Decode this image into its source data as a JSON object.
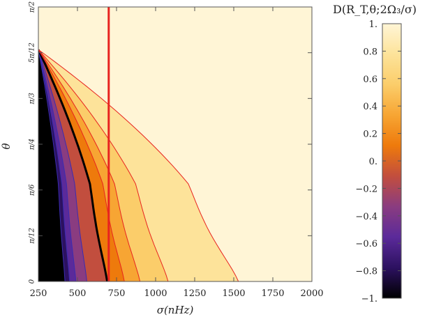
{
  "chart_data": {
    "type": "contour",
    "xlabel": "σ(nHz)",
    "ylabel": "θ",
    "xlim": [
      250,
      2000
    ],
    "ylim": [
      0,
      90
    ],
    "x_ticks": [
      250,
      500,
      750,
      1000,
      1250,
      1500,
      1750,
      2000
    ],
    "x_tick_labels": [
      "250",
      "500",
      "750",
      "1000",
      "1250",
      "1500",
      "1750",
      "2000"
    ],
    "y_ticks": [
      0,
      15,
      30,
      45,
      60,
      75,
      90
    ],
    "y_tick_labels": [
      "0",
      "π/12",
      "π/6",
      "π/4",
      "π/3",
      "5π/12",
      "π/2"
    ],
    "colorbar": {
      "title": "D(R_T,θ;2Ω₃/σ)",
      "range": [
        -1,
        1
      ],
      "ticks": [
        -1,
        -0.8,
        -0.6,
        -0.4,
        -0.2,
        0,
        0.2,
        0.4,
        0.6,
        0.8,
        1
      ],
      "tick_labels": [
        "−1.",
        "−0.8",
        "−0.6",
        "−0.4",
        "−0.2",
        "0.",
        "0.2",
        "0.4",
        "0.6",
        "0.8",
        "1."
      ],
      "colors": [
        "#000000",
        "#2c1160",
        "#5b2a9a",
        "#8a3c80",
        "#c24e3e",
        "#ee7a0c",
        "#f7a533",
        "#fbcd6a",
        "#fde39a",
        "#fff5d6"
      ]
    },
    "vertical_line": {
      "x": 700,
      "color": "#e8231f",
      "label": ""
    },
    "highlight_contour": {
      "level": 0,
      "color": "#000000"
    },
    "contour_levels": [
      {
        "level": -0.8,
        "sigma_equator": 420,
        "sigma_pole": 250,
        "line": "#3a2cb0"
      },
      {
        "level": -0.6,
        "sigma_equator": 450,
        "sigma_pole": 250,
        "line": "#3a2cb0"
      },
      {
        "level": -0.4,
        "sigma_equator": 490,
        "sigma_pole": 250,
        "line": "#3a2cb0"
      },
      {
        "level": -0.2,
        "sigma_equator": 560,
        "sigma_pole": 250,
        "line": "#3a2cb0"
      },
      {
        "level": 0.0,
        "sigma_equator": 690,
        "sigma_pole": 250,
        "line": "#000000"
      },
      {
        "level": 0.2,
        "sigma_equator": 800,
        "sigma_pole": 250,
        "line": "#e8231f"
      },
      {
        "level": 0.4,
        "sigma_equator": 900,
        "sigma_pole": 250,
        "line": "#e8231f"
      },
      {
        "level": 0.6,
        "sigma_equator": 1080,
        "sigma_pole": 250,
        "line": "#e8231f"
      },
      {
        "level": 0.8,
        "sigma_equator": 1530,
        "sigma_pole": 250,
        "line": "#e8231f"
      }
    ],
    "grid": false,
    "legend": "colorbar-right"
  }
}
